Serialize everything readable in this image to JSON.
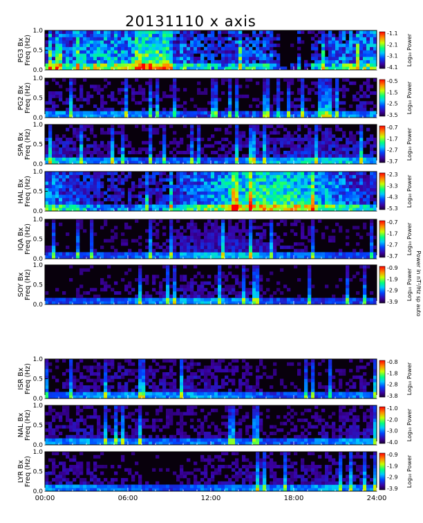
{
  "title": "20131110 x axis",
  "chart_data": {
    "type": "heatmap",
    "x_ticks": [
      "00:00",
      "06:00",
      "12:00",
      "18:00",
      "24:00"
    ],
    "y_ticks": [
      "0.0",
      "0.5",
      "1.0"
    ],
    "ylim": [
      0,
      1.0
    ],
    "colorbar_label": "Log₁₀ Power",
    "side_note": "Power in nT²/Hz sp auto",
    "panels": [
      {
        "station": "PG3 Bx",
        "ylabel": "Freq (Hz)",
        "cb_ticks": [
          "-1.1",
          "-2.1",
          "-3.1",
          "-4.1"
        ],
        "activity": "high-broad"
      },
      {
        "station": "PG2 Bx",
        "ylabel": "Freq (Hz)",
        "cb_ticks": [
          "-0.5",
          "-1.5",
          "-2.5",
          "-3.5"
        ],
        "activity": "spiky"
      },
      {
        "station": "SPA Bx",
        "ylabel": "Freq (Hz)",
        "cb_ticks": [
          "-0.7",
          "-1.7",
          "-2.7",
          "-3.7"
        ],
        "activity": "moderate"
      },
      {
        "station": "HAL Bx",
        "ylabel": "Freq (Hz)",
        "cb_ticks": [
          "-2.3",
          "-3.3",
          "-4.3",
          "-5.3"
        ],
        "activity": "very-high"
      },
      {
        "station": "IQA Bx",
        "ylabel": "Freq (Hz)",
        "cb_ticks": [
          "-0.7",
          "-1.7",
          "-2.7",
          "-3.7"
        ],
        "activity": "low"
      },
      {
        "station": "SOY Bx",
        "ylabel": "Freq (Hz)",
        "cb_ticks": [
          "-0.9",
          "-1.9",
          "-2.9",
          "-3.9"
        ],
        "activity": "low-dark"
      },
      {
        "station": "ISR Bx",
        "ylabel": "Freq (Hz)",
        "cb_ticks": [
          "-0.8",
          "-1.8",
          "-2.8",
          "-3.8"
        ],
        "activity": "low"
      },
      {
        "station": "NAL Bx",
        "ylabel": "Freq (Hz)",
        "cb_ticks": [
          "-1.0",
          "-2.0",
          "-3.0",
          "-4.0"
        ],
        "activity": "low"
      },
      {
        "station": "LYR Bx",
        "ylabel": "Freq (Hz)",
        "cb_ticks": [
          "-0.9",
          "-1.9",
          "-2.9",
          "-3.9"
        ],
        "activity": "low"
      }
    ]
  }
}
